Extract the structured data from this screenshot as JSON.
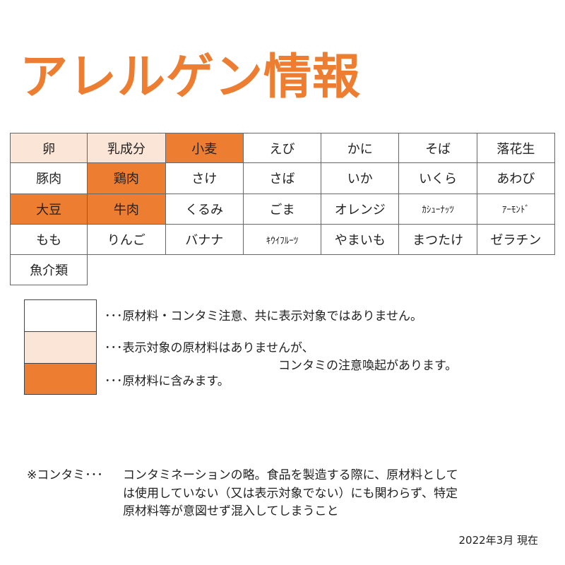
{
  "title": "アレルゲン情報",
  "colors": {
    "none": "#FFFFFF",
    "contamination": "#FBE5D6",
    "contains": "#ED7D31"
  },
  "allergens": [
    {
      "name": "卵",
      "status": "contamination"
    },
    {
      "name": "乳成分",
      "status": "contamination"
    },
    {
      "name": "小麦",
      "status": "contains"
    },
    {
      "name": "えび",
      "status": "none"
    },
    {
      "name": "かに",
      "status": "none"
    },
    {
      "name": "そば",
      "status": "none"
    },
    {
      "name": "落花生",
      "status": "none"
    },
    {
      "name": "豚肉",
      "status": "none"
    },
    {
      "name": "鶏肉",
      "status": "contains"
    },
    {
      "name": "さけ",
      "status": "none"
    },
    {
      "name": "さば",
      "status": "none"
    },
    {
      "name": "いか",
      "status": "none"
    },
    {
      "name": "いくら",
      "status": "none"
    },
    {
      "name": "あわび",
      "status": "none"
    },
    {
      "name": "大豆",
      "status": "contains"
    },
    {
      "name": "牛肉",
      "status": "contains"
    },
    {
      "name": "くるみ",
      "status": "none"
    },
    {
      "name": "ごま",
      "status": "none"
    },
    {
      "name": "オレンジ",
      "status": "none"
    },
    {
      "name": "ｶｼｭｰﾅｯﾂ",
      "status": "none"
    },
    {
      "name": "ｱｰﾓﾝﾄﾞ",
      "status": "none"
    },
    {
      "name": "もも",
      "status": "none"
    },
    {
      "name": "りんご",
      "status": "none"
    },
    {
      "name": "バナナ",
      "status": "none"
    },
    {
      "name": "ｷｳｲﾌﾙｰﾂ",
      "status": "none"
    },
    {
      "name": "やまいも",
      "status": "none"
    },
    {
      "name": "まつたけ",
      "status": "none"
    },
    {
      "name": "ゼラチン",
      "status": "none"
    },
    {
      "name": "魚介類",
      "status": "none"
    }
  ],
  "legend": {
    "none": "･･･原材料・コンタミ注意、共に表示対象ではありません。",
    "contamination_line1": "･･･表示対象の原材料はありませんが、",
    "contamination_line2": "コンタミの注意喚起があります。",
    "contains": "･･･原材料に含みます。"
  },
  "note": {
    "label": "※コンタミ･･･",
    "line1": "コンタミネーションの略。食品を製造する際に、原材料として",
    "line2": "は使用していない（又は表示対象でない）にも関わらず、特定",
    "line3": "原材料等が意図せず混入してしまうこと"
  },
  "date": "2022年3月 現在"
}
